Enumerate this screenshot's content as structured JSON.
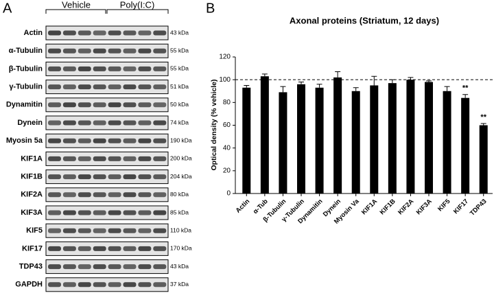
{
  "blot": {
    "label": "A",
    "groups": [
      "Vehicle",
      "Poly(I:C)"
    ],
    "rows": [
      {
        "protein": "Actin",
        "size": "43 kDa"
      },
      {
        "protein": "α-Tubulin",
        "size": "55 kDa"
      },
      {
        "protein": "β-Tubulin",
        "size": "55 kDa"
      },
      {
        "protein": "γ-Tubulin",
        "size": "51 kDa"
      },
      {
        "protein": "Dynamitin",
        "size": "50 kDa"
      },
      {
        "protein": "Dynein",
        "size": "74 kDa"
      },
      {
        "protein": "Myosin 5a",
        "size": "190 kDa"
      },
      {
        "protein": "KIF1A",
        "size": "200 kDa"
      },
      {
        "protein": "KIF1B",
        "size": "204 kDa"
      },
      {
        "protein": "KIF2A",
        "size": "80 kDa"
      },
      {
        "protein": "KIF3A",
        "size": "85 kDa"
      },
      {
        "protein": "KIF5",
        "size": "110 kDa"
      },
      {
        "protein": "KIF17",
        "size": "170 kDa"
      },
      {
        "protein": "TDP43",
        "size": "43 kDa"
      },
      {
        "protein": "GAPDH",
        "size": "37 kDa"
      }
    ]
  },
  "chart_data": {
    "type": "bar",
    "panel_label": "B",
    "title": "Axonal proteins (Striatum, 12 days)",
    "y_label": "Optical density (% vehicle)",
    "categories": [
      "Actin",
      "α-Tub",
      "β-Tubulin",
      "γ-Tubulin",
      "Dynamitin",
      "Dynein",
      "Myosin Va",
      "KIF1A",
      "KIF1B",
      "KIF2A",
      "KIF3A",
      "KIF5",
      "KIF17",
      "TDP43"
    ],
    "values": [
      93,
      103,
      89,
      96,
      93,
      102,
      90,
      95,
      97,
      100,
      98,
      90,
      84,
      60
    ],
    "errors": [
      2,
      2,
      5,
      2,
      3,
      5,
      3,
      8,
      3,
      2,
      1,
      4,
      3,
      1.5
    ],
    "color": "#000000",
    "ylim": [
      0,
      120
    ],
    "yticks": [
      0,
      20,
      40,
      60,
      80,
      100,
      120
    ],
    "reference_line": 100,
    "annotations": [
      {
        "text": "**",
        "x": "KIF17"
      },
      {
        "text": "**",
        "x": "TDP43"
      }
    ]
  }
}
